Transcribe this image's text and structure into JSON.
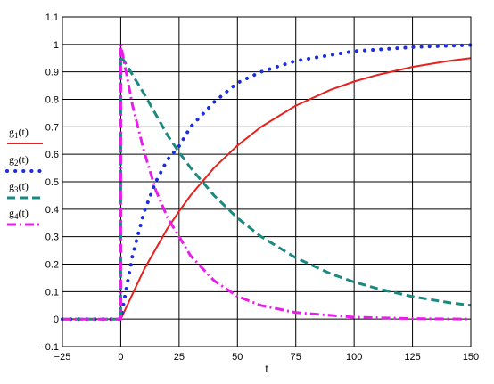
{
  "chart_data": {
    "type": "line",
    "title": "",
    "xlabel": "t",
    "ylabel": "",
    "xlim": [
      -25,
      150
    ],
    "ylim": [
      -0.1,
      1.1
    ],
    "x_ticks": [
      "-25",
      "0",
      "25",
      "50",
      "75",
      "100",
      "125",
      "150"
    ],
    "y_ticks": [
      "-0.1",
      "0",
      "0.1",
      "0.2",
      "0.3",
      "0.4",
      "0.5",
      "0.6",
      "0.7",
      "0.8",
      "0.9",
      "1",
      "1.1"
    ],
    "grid": true,
    "legend_position": "left",
    "series": [
      {
        "name": "g1(t)",
        "name_base": "g",
        "name_sub": "1",
        "name_arg": "(t)",
        "color": "#e8201e",
        "style": "solid",
        "points": [
          [
            -25,
            0
          ],
          [
            0,
            0
          ],
          [
            10,
            0.181
          ],
          [
            20,
            0.33
          ],
          [
            25,
            0.393
          ],
          [
            30,
            0.451
          ],
          [
            40,
            0.551
          ],
          [
            50,
            0.632
          ],
          [
            60,
            0.699
          ],
          [
            75,
            0.777
          ],
          [
            90,
            0.835
          ],
          [
            100,
            0.865
          ],
          [
            110,
            0.889
          ],
          [
            125,
            0.918
          ],
          [
            140,
            0.939
          ],
          [
            150,
            0.95
          ]
        ]
      },
      {
        "name": "g2(t)",
        "name_base": "g",
        "name_sub": "2",
        "name_arg": "(t)",
        "color": "#1a2ee0",
        "style": "dotted",
        "points": [
          [
            -25,
            0
          ],
          [
            0,
            0
          ],
          [
            5,
            0.23
          ],
          [
            10,
            0.39
          ],
          [
            15,
            0.5
          ],
          [
            20,
            0.58
          ],
          [
            25,
            0.63
          ],
          [
            30,
            0.7
          ],
          [
            40,
            0.79
          ],
          [
            50,
            0.86
          ],
          [
            60,
            0.9
          ],
          [
            75,
            0.94
          ],
          [
            100,
            0.975
          ],
          [
            125,
            0.99
          ],
          [
            150,
            0.998
          ]
        ]
      },
      {
        "name": "g3(t)",
        "name_base": "g",
        "name_sub": "3",
        "name_arg": "(t)",
        "color": "#1a8a80",
        "style": "dashed",
        "points": [
          [
            -25,
            0
          ],
          [
            0,
            0
          ],
          [
            0,
            0.96
          ],
          [
            10,
            0.82
          ],
          [
            20,
            0.67
          ],
          [
            25,
            0.607
          ],
          [
            30,
            0.55
          ],
          [
            40,
            0.45
          ],
          [
            50,
            0.368
          ],
          [
            60,
            0.301
          ],
          [
            75,
            0.223
          ],
          [
            90,
            0.165
          ],
          [
            100,
            0.135
          ],
          [
            110,
            0.111
          ],
          [
            125,
            0.082
          ],
          [
            140,
            0.061
          ],
          [
            150,
            0.05
          ]
        ]
      },
      {
        "name": "g4(t)",
        "name_base": "g",
        "name_sub": "4",
        "name_arg": "(t)",
        "color": "#e81ee8",
        "style": "dashdot",
        "points": [
          [
            -25,
            0
          ],
          [
            0,
            0
          ],
          [
            0,
            1
          ],
          [
            5,
            0.78
          ],
          [
            10,
            0.61
          ],
          [
            15,
            0.47
          ],
          [
            20,
            0.37
          ],
          [
            25,
            0.3
          ],
          [
            30,
            0.23
          ],
          [
            40,
            0.14
          ],
          [
            50,
            0.083
          ],
          [
            60,
            0.05
          ],
          [
            75,
            0.024
          ],
          [
            100,
            0.007
          ],
          [
            125,
            0.002
          ],
          [
            150,
            0.0
          ]
        ]
      }
    ]
  }
}
